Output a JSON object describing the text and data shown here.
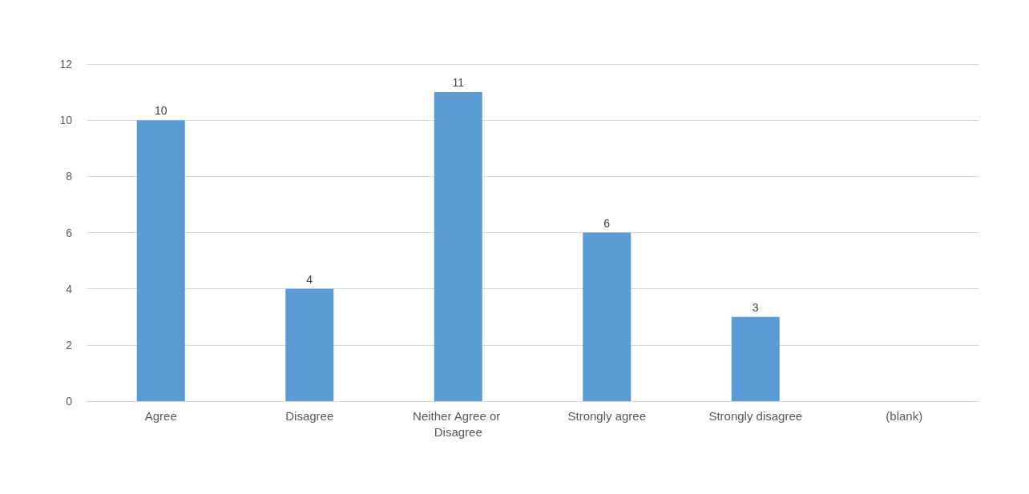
{
  "chart_data": {
    "type": "bar",
    "categories": [
      "Agree",
      "Disagree",
      "Neither Agree or Disagree",
      "Strongly agree",
      "Strongly disagree",
      "(blank)"
    ],
    "values": [
      10,
      4,
      11,
      6,
      3,
      null
    ],
    "color": "#5b9bd5",
    "ylim": [
      0,
      12
    ],
    "yticks": [
      0,
      2,
      4,
      6,
      8,
      10,
      12
    ],
    "grid": "y",
    "data_labels": true
  }
}
